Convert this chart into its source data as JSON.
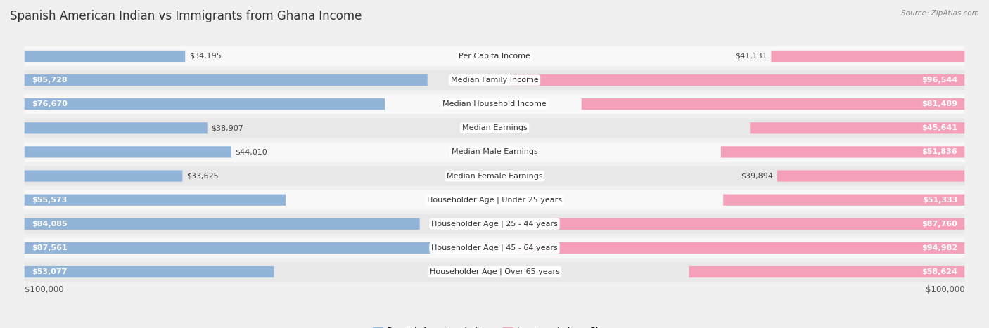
{
  "title": "Spanish American Indian vs Immigrants from Ghana Income",
  "source": "Source: ZipAtlas.com",
  "categories": [
    "Per Capita Income",
    "Median Family Income",
    "Median Household Income",
    "Median Earnings",
    "Median Male Earnings",
    "Median Female Earnings",
    "Householder Age | Under 25 years",
    "Householder Age | 25 - 44 years",
    "Householder Age | 45 - 64 years",
    "Householder Age | Over 65 years"
  ],
  "left_values": [
    34195,
    85728,
    76670,
    38907,
    44010,
    33625,
    55573,
    84085,
    87561,
    53077
  ],
  "right_values": [
    41131,
    96544,
    81489,
    45641,
    51836,
    39894,
    51333,
    87760,
    94982,
    58624
  ],
  "left_labels": [
    "$34,195",
    "$85,728",
    "$76,670",
    "$38,907",
    "$44,010",
    "$33,625",
    "$55,573",
    "$84,085",
    "$87,561",
    "$53,077"
  ],
  "right_labels": [
    "$41,131",
    "$96,544",
    "$81,489",
    "$45,641",
    "$51,836",
    "$39,894",
    "$51,333",
    "$87,760",
    "$94,982",
    "$58,624"
  ],
  "left_color": "#92b4d9",
  "right_color": "#f4a0b8",
  "left_legend": "Spanish American Indian",
  "right_legend": "Immigrants from Ghana",
  "max_value": 100000,
  "x_label_left": "$100,000",
  "x_label_right": "$100,000",
  "bg_color": "#f0f0f0",
  "row_bg_light": "#f8f8f8",
  "row_bg_dark": "#e8e8e8",
  "title_fontsize": 12,
  "label_fontsize": 8,
  "category_fontsize": 8,
  "large_bar_threshold": 45000
}
